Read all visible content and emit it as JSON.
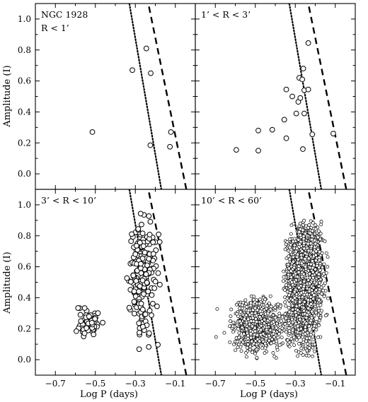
{
  "chart_data": {
    "type": "scatter",
    "layout": "2x2 panels, shared axes",
    "xlabel": "Log P (days)",
    "ylabel": "Amplitude (I)",
    "xlim": [
      -0.8,
      0.0
    ],
    "ylim": [
      -0.1,
      1.1
    ],
    "xticks": [
      -0.7,
      -0.5,
      -0.3,
      -0.1
    ],
    "xtick_labels": [
      "−0.7",
      "−0.5",
      "−0.3",
      "−0.1"
    ],
    "yticks": [
      0.0,
      0.2,
      0.4,
      0.6,
      0.8,
      1.0
    ],
    "ytick_labels": [
      "0.0",
      "0.2",
      "0.4",
      "0.6",
      "0.8",
      "1.0"
    ],
    "reference_lines": {
      "dotted": {
        "x_at_y_minus_0_1": -0.17,
        "x_at_y_1_1": -0.33
      },
      "dashed": {
        "x_at_y_minus_0_1": -0.045,
        "x_at_y_1_1": -0.235
      }
    },
    "panels": [
      {
        "id": "p1",
        "label_lines": [
          "NGC 1928",
          "R < 1’"
        ],
        "marker": "open-circle-large",
        "points": [
          [
            -0.515,
            0.27
          ],
          [
            -0.315,
            0.67
          ],
          [
            -0.245,
            0.81
          ],
          [
            -0.223,
            0.65
          ],
          [
            -0.225,
            0.185
          ],
          [
            -0.122,
            0.27
          ],
          [
            -0.127,
            0.175
          ]
        ]
      },
      {
        "id": "p2",
        "label_lines": [
          "1’ < R < 3’"
        ],
        "marker": "open-circle-large",
        "points": [
          [
            -0.595,
            0.155
          ],
          [
            -0.485,
            0.28
          ],
          [
            -0.485,
            0.15
          ],
          [
            -0.415,
            0.285
          ],
          [
            -0.355,
            0.35
          ],
          [
            -0.345,
            0.23
          ],
          [
            -0.345,
            0.545
          ],
          [
            -0.315,
            0.5
          ],
          [
            -0.295,
            0.39
          ],
          [
            -0.285,
            0.465
          ],
          [
            -0.28,
            0.62
          ],
          [
            -0.275,
            0.49
          ],
          [
            -0.265,
            0.61
          ],
          [
            -0.26,
            0.68
          ],
          [
            -0.255,
            0.54
          ],
          [
            -0.262,
            0.16
          ],
          [
            -0.255,
            0.39
          ],
          [
            -0.235,
            0.845
          ],
          [
            -0.235,
            0.545
          ],
          [
            -0.215,
            0.255
          ],
          [
            -0.11,
            0.26
          ]
        ]
      },
      {
        "id": "p3",
        "label_lines": [
          "3’ < R < 10’"
        ],
        "marker": "open-circle-large",
        "generated": true,
        "groups": [
          {
            "count": 60,
            "x_mean": -0.535,
            "x_sd": 0.03,
            "y_mean": 0.245,
            "y_sd": 0.055,
            "x_range": [
              -0.6,
              -0.45
            ],
            "y_range": [
              0.08,
              0.34
            ],
            "seed": 11
          },
          {
            "count": 200,
            "x_mean": -0.27,
            "x_sd": 0.035,
            "y_min": 0.05,
            "y_max": 0.97,
            "slope": -0.38,
            "ridge_y_at_x": [
              -0.3,
              0.55
            ],
            "y_spread": 0.19,
            "x_range": [
              -0.37,
              -0.12
            ],
            "seed": 29
          }
        ]
      },
      {
        "id": "p4",
        "label_lines": [
          "10’ < R < 60’"
        ],
        "marker": "open-circle-small",
        "generated": true,
        "groups": [
          {
            "count": 700,
            "x_mean": -0.49,
            "x_sd": 0.055,
            "y_mean": 0.22,
            "y_sd": 0.08,
            "x_range": [
              -0.66,
              -0.33
            ],
            "y_range": [
              0.0,
              0.42
            ],
            "seed": 7
          },
          {
            "count": 2400,
            "x_mean": -0.255,
            "x_sd": 0.04,
            "y_min": 0.02,
            "y_max": 0.9,
            "slope": -0.38,
            "ridge_y_at_x": [
              -0.28,
              0.5
            ],
            "y_spread": 0.17,
            "x_range": [
              -0.36,
              -0.1
            ],
            "seed": 41
          },
          {
            "count": 80,
            "x_mean": -0.45,
            "x_sd": 0.14,
            "y_mean": 0.2,
            "y_sd": 0.09,
            "x_range": [
              -0.72,
              -0.1
            ],
            "y_range": [
              0.0,
              0.5
            ],
            "seed": 97
          }
        ]
      }
    ]
  }
}
